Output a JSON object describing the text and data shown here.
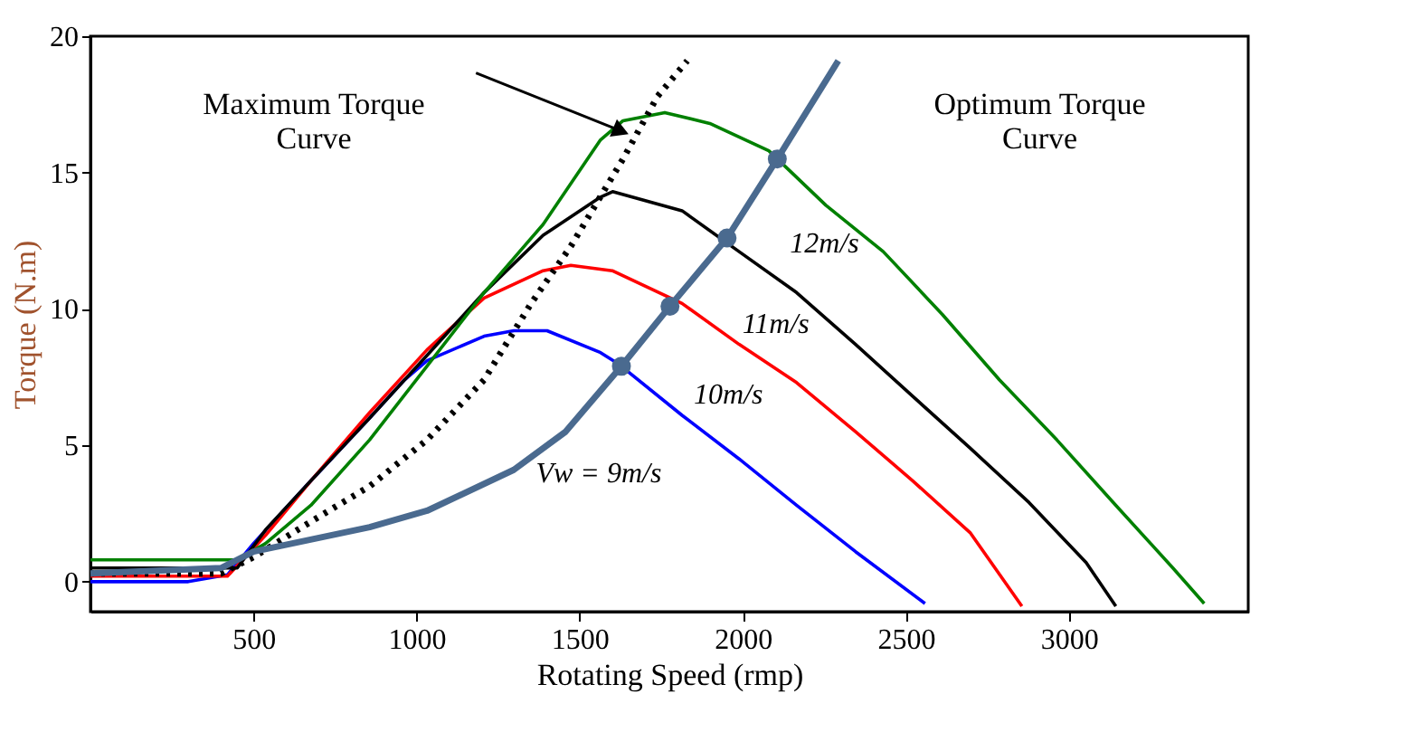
{
  "chart_data": {
    "type": "line",
    "xlabel": "Rotating Speed (rmp)",
    "ylabel": "Torque (N.m)",
    "xlim": [
      0,
      3550
    ],
    "ylim": [
      -1.1,
      20
    ],
    "xticks": [
      500,
      1000,
      1500,
      2000,
      2500,
      3000
    ],
    "yticks": [
      0,
      5,
      10,
      15,
      20
    ],
    "grid": false,
    "marker": "none",
    "series": [
      {
        "color": "#0000ff",
        "x": [
          0,
          300,
          420,
          500,
          676,
          856,
          963,
          1032,
          1207,
          1298,
          1400,
          1564,
          1617,
          1814,
          1989,
          2165,
          2346,
          2559
        ],
        "values": [
          0,
          0,
          0.25,
          1.4,
          3.7,
          6.0,
          7.4,
          8.1,
          9.0,
          9.2,
          9.2,
          8.4,
          8.0,
          6.1,
          4.5,
          2.8,
          1.1,
          -0.8
        ]
      },
      {
        "color": "#ff0000",
        "x": [
          0,
          420,
          537,
          676,
          856,
          1032,
          1207,
          1388,
          1473,
          1600,
          1814,
          1989,
          2165,
          2346,
          2521,
          2697,
          2856
        ],
        "values": [
          0.2,
          0.2,
          1.7,
          3.7,
          6.2,
          8.5,
          10.4,
          11.4,
          11.6,
          11.4,
          10.2,
          8.7,
          7.3,
          5.5,
          3.7,
          1.8,
          -0.9
        ]
      },
      {
        "color": "#000000",
        "x": [
          0,
          450,
          537,
          676,
          856,
          1032,
          1207,
          1388,
          1564,
          1601,
          1814,
          1989,
          2165,
          2346,
          2521,
          2697,
          2878,
          3053,
          3144
        ],
        "values": [
          0.5,
          0.5,
          1.9,
          3.7,
          6.0,
          8.3,
          10.6,
          12.7,
          14.1,
          14.3,
          13.6,
          12.1,
          10.6,
          8.7,
          6.8,
          4.9,
          2.9,
          0.7,
          -0.9
        ]
      },
      {
        "color": "#008000",
        "x": [
          0,
          450,
          537,
          676,
          856,
          1032,
          1207,
          1388,
          1564,
          1633,
          1761,
          1899,
          2080,
          2255,
          2431,
          2612,
          2787,
          2963,
          3144,
          3319,
          3415
        ],
        "values": [
          0.8,
          0.8,
          1.4,
          2.8,
          5.2,
          7.9,
          10.6,
          13.1,
          16.2,
          16.9,
          17.2,
          16.8,
          15.8,
          13.8,
          12.1,
          9.8,
          7.4,
          5.2,
          2.8,
          0.5,
          -0.8
        ]
      },
      {
        "color": "#000000",
        "line_style": "dotted",
        "x": [
          0,
          400,
          500,
          676,
          856,
          1032,
          1207,
          1351,
          1473,
          1633,
          1739,
          1830
        ],
        "values": [
          0.3,
          0.3,
          0.9,
          2.2,
          3.5,
          5.2,
          7.4,
          10.2,
          12.3,
          15.5,
          17.8,
          19.1
        ]
      },
      {
        "color": "#4a6a8f",
        "x": [
          0,
          400,
          500,
          856,
          1032,
          1298,
          1457,
          1628,
          1777,
          1952,
          2106,
          2293
        ],
        "values": [
          0.3,
          0.5,
          1.1,
          2.0,
          2.6,
          4.1,
          5.5,
          7.9,
          10.1,
          12.6,
          15.5,
          19.1
        ]
      },
      {
        "type": "scatter",
        "marker": "circle",
        "color": "#4a6a8f",
        "x": [
          1628,
          1777,
          1952,
          2106
        ],
        "values": [
          7.9,
          10.1,
          12.6,
          15.5
        ]
      }
    ],
    "annotations": [
      "Maximum Torque\nCurve",
      "Optimum Torque\nCurve",
      "12m/s",
      "11m/s",
      "10m/s",
      "Vw = 9m/s"
    ]
  }
}
